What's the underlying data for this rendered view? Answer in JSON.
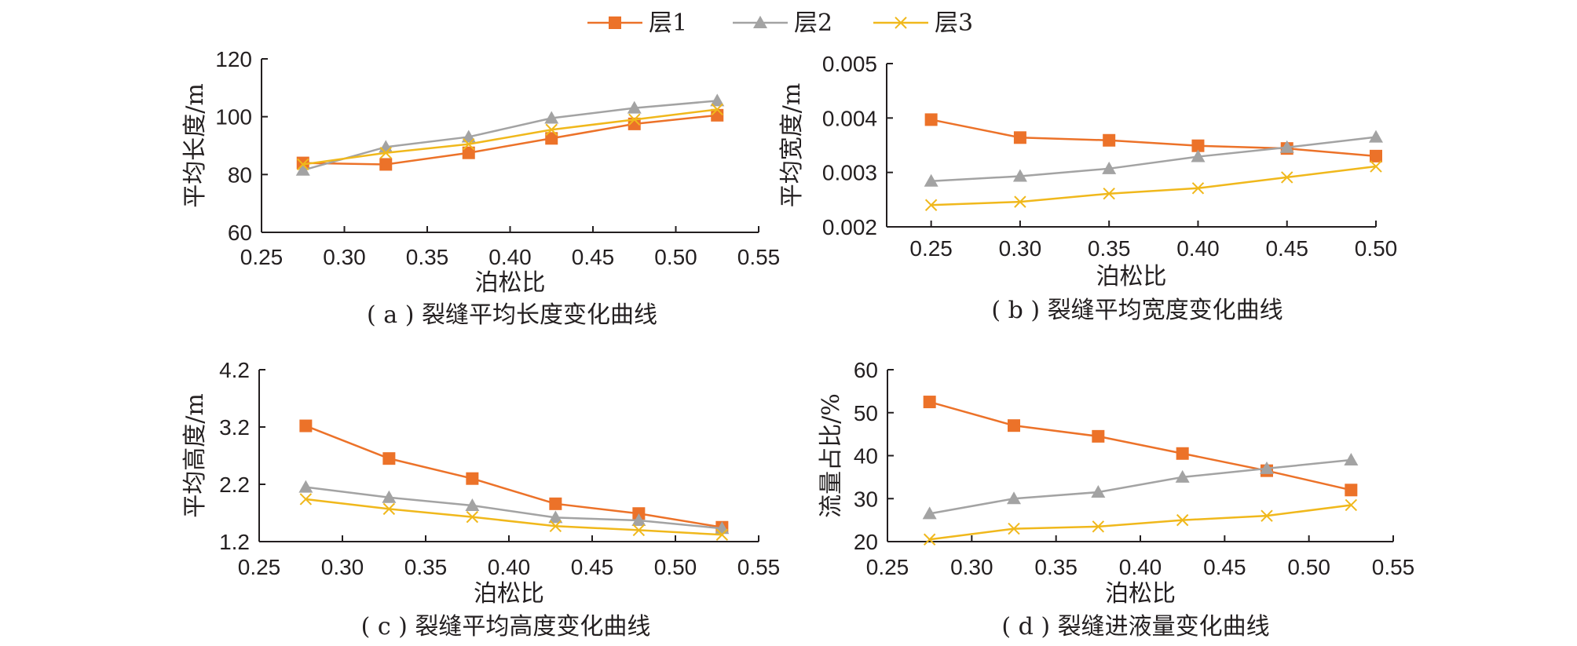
{
  "legend": [
    {
      "name": "层1",
      "color": "#ec7229",
      "marker": "square"
    },
    {
      "name": "层2",
      "color": "#a3a3a3",
      "marker": "triangle"
    },
    {
      "name": "层3",
      "color": "#f0b81c",
      "marker": "cross"
    }
  ],
  "chart_data": [
    {
      "type": "line",
      "caption": "( a ) 裂缝平均长度变化曲线",
      "xlabel": "泊松比",
      "ylabel": "平均长度/m",
      "xlim": [
        0.25,
        0.55
      ],
      "ylim": [
        60,
        120
      ],
      "xticks": [
        "0.25",
        "0.30",
        "0.35",
        "0.40",
        "0.45",
        "0.50",
        "0.55"
      ],
      "yticks": [
        "60",
        "80",
        "100",
        "120"
      ],
      "x": [
        0.275,
        0.325,
        0.375,
        0.425,
        0.475,
        0.525
      ],
      "series": [
        {
          "name": "层1",
          "values": [
            84,
            83.5,
            87.5,
            92.5,
            97.5,
            100.5
          ]
        },
        {
          "name": "层2",
          "values": [
            81.5,
            89.5,
            93,
            99.5,
            103,
            105.5
          ]
        },
        {
          "name": "层3",
          "values": [
            83.5,
            87.5,
            90.5,
            95.5,
            99,
            102.5
          ]
        }
      ]
    },
    {
      "type": "line",
      "caption": "( b ) 裂缝平均宽度变化曲线",
      "xlabel": "泊松比",
      "ylabel": "平均宽度/m",
      "xlim": [
        0.225,
        0.5
      ],
      "ylim": [
        0.002,
        0.005
      ],
      "xticks": [
        "0.25",
        "0.30",
        "0.35",
        "0.40",
        "0.45",
        "0.50"
      ],
      "yticks": [
        "0.002",
        "0.003",
        "0.004",
        "0.005"
      ],
      "x": [
        0.25,
        0.3,
        0.35,
        0.4,
        0.45,
        0.5
      ],
      "series": [
        {
          "name": "层1",
          "values": [
            0.00397,
            0.00364,
            0.00359,
            0.00349,
            0.00344,
            0.0033
          ]
        },
        {
          "name": "层2",
          "values": [
            0.00284,
            0.00293,
            0.00307,
            0.00329,
            0.00346,
            0.00365
          ]
        },
        {
          "name": "层3",
          "values": [
            0.0024,
            0.00246,
            0.00261,
            0.00271,
            0.00291,
            0.00311
          ]
        }
      ]
    },
    {
      "type": "line",
      "caption": "( c ) 裂缝平均高度变化曲线",
      "xlabel": "泊松比",
      "ylabel": "平均高度/m",
      "xlim": [
        0.25,
        0.55
      ],
      "ylim": [
        1.2,
        4.2
      ],
      "xticks": [
        "0.25",
        "0.30",
        "0.35",
        "0.40",
        "0.45",
        "0.50",
        "0.55"
      ],
      "yticks": [
        "1.2",
        "2.2",
        "3.2",
        "4.2"
      ],
      "x": [
        0.278,
        0.328,
        0.378,
        0.428,
        0.478,
        0.528
      ],
      "series": [
        {
          "name": "层1",
          "values": [
            3.22,
            2.65,
            2.3,
            1.86,
            1.69,
            1.45
          ]
        },
        {
          "name": "层2",
          "values": [
            2.15,
            1.97,
            1.83,
            1.62,
            1.57,
            1.43
          ]
        },
        {
          "name": "层3",
          "values": [
            1.94,
            1.77,
            1.63,
            1.47,
            1.4,
            1.32
          ]
        }
      ]
    },
    {
      "type": "line",
      "caption": "( d ) 裂缝进液量变化曲线",
      "xlabel": "泊松比",
      "ylabel": "流量占比/%",
      "xlim": [
        0.25,
        0.55
      ],
      "ylim": [
        20,
        60
      ],
      "xticks": [
        "0.25",
        "0.30",
        "0.35",
        "0.40",
        "0.45",
        "0.50",
        "0.55"
      ],
      "yticks": [
        "20",
        "30",
        "40",
        "50",
        "60"
      ],
      "x": [
        0.275,
        0.325,
        0.375,
        0.425,
        0.475,
        0.525
      ],
      "series": [
        {
          "name": "层1",
          "values": [
            52.5,
            47,
            44.5,
            40.5,
            36.5,
            32
          ]
        },
        {
          "name": "层2",
          "values": [
            26.5,
            30,
            31.5,
            35,
            37,
            39
          ]
        },
        {
          "name": "层3",
          "values": [
            20.5,
            23,
            23.5,
            25,
            26,
            28.5
          ]
        }
      ]
    }
  ]
}
